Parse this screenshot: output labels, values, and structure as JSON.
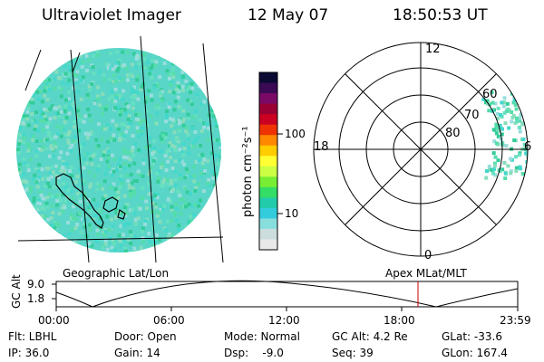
{
  "header": {
    "instrument": "Ultraviolet Imager",
    "date": "12 May 07",
    "time": "18:50:53 UT"
  },
  "colorbar": {
    "unit_label": "photon cm⁻²s⁻¹",
    "ticks": [
      "100",
      "10"
    ],
    "colors": [
      "#0a0a33",
      "#3a0a55",
      "#7a0a66",
      "#9a0033",
      "#cc0022",
      "#ee3300",
      "#ff8800",
      "#ffcc00",
      "#ffff33",
      "#ccff44",
      "#77ee33",
      "#33dd66",
      "#22ccaa",
      "#33ccdd",
      "#88dddd",
      "#ccdddd",
      "#e8e8e8"
    ]
  },
  "geo_map": {
    "label": "Geographic Lat/Lon",
    "fill_colors": [
      "#44d8cc",
      "#66e0c0",
      "#33cc99",
      "#88ddbb",
      "#55ddaa",
      "#99dddd"
    ]
  },
  "polar_plot": {
    "label": "Apex MLat/MLT",
    "mlt_labels": {
      "top": "12",
      "left": "18",
      "right": "6",
      "bottom": "0"
    },
    "lat_labels": [
      "60",
      "70",
      "80"
    ]
  },
  "gc_alt_panel": {
    "ylabel": "GC Alt",
    "yticks": [
      "9.0",
      "1.8"
    ],
    "xticks": [
      "00:00",
      "06:00",
      "12:00",
      "18:00",
      "23:59"
    ],
    "current_time_marker_color": "#cc0000"
  },
  "status": {
    "flt": "Flt: LBHL",
    "ip": "IP: 36.0",
    "door": "Door: Open",
    "gain": "Gain: 14",
    "mode": "Mode: Normal",
    "dsp": "Dsp:    -9.0",
    "gc_alt": "GC Alt: 4.2 Re",
    "seq": "Seq: 39",
    "glat": "GLat: -33.6",
    "glon": "GLon: 167.4"
  }
}
